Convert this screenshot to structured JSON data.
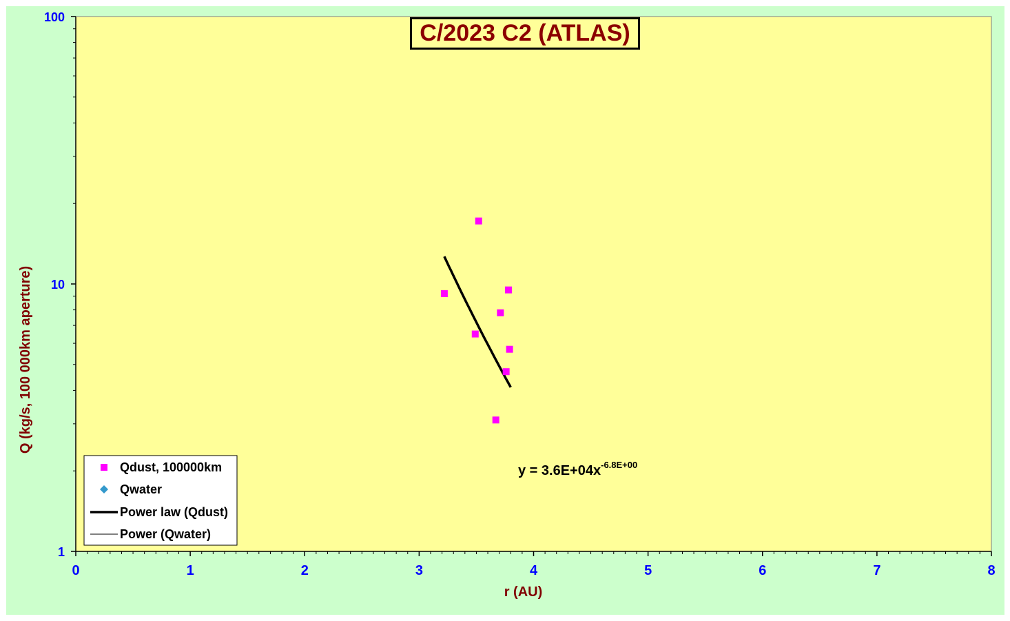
{
  "chart_data": {
    "type": "scatter",
    "title": "C/2023 C2 (ATLAS)",
    "xlabel": "r (AU)",
    "ylabel": "Q (kg/s, 100 000km aperture)",
    "xlim": [
      0,
      8
    ],
    "ylim": [
      1,
      100
    ],
    "y_scale": "log",
    "x_ticks": [
      "0",
      "1",
      "2",
      "3",
      "4",
      "5",
      "6",
      "7",
      "8"
    ],
    "y_ticks": [
      "1",
      "10",
      "100"
    ],
    "grid": false,
    "legend_position": "bottom-left",
    "series": [
      {
        "name": "Qdust, 100000km",
        "marker": "square",
        "color": "#ff00ff",
        "x": [
          3.22,
          3.49,
          3.52,
          3.67,
          3.71,
          3.76,
          3.78,
          3.79
        ],
        "y": [
          9.2,
          6.5,
          17.2,
          3.1,
          7.8,
          4.7,
          9.5,
          5.7
        ]
      },
      {
        "name": "Qwater",
        "marker": "diamond",
        "color": "#3399cc",
        "x": [],
        "y": []
      }
    ],
    "trendlines": [
      {
        "name": "Power law (Qdust)",
        "type": "power",
        "a": 36000,
        "b": -6.8,
        "x_range": [
          3.22,
          3.8
        ],
        "line_width": "thick",
        "color": "#000000"
      },
      {
        "name": "Power (Qwater)",
        "type": "power",
        "line_width": "thin",
        "color": "#000000"
      }
    ],
    "equation": {
      "prefix": "y = 3.6E+04x",
      "exponent": "-6.8E+00"
    },
    "colors": {
      "background": "#ccffcc",
      "plot_area": "#ffff99",
      "tick_labels": "#0000ff",
      "axis_titles": "#800000",
      "title": "#8b0000"
    }
  }
}
